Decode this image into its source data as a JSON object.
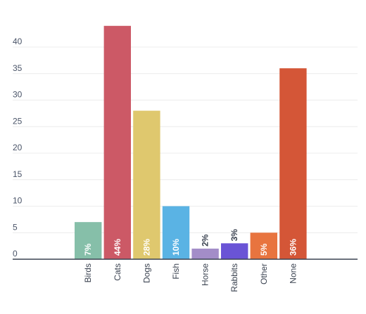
{
  "chart_data": {
    "type": "bar",
    "title": "",
    "xlabel": "",
    "ylabel": "",
    "ylim": [
      0,
      45
    ],
    "yticks": [
      0,
      5,
      10,
      15,
      20,
      25,
      30,
      35,
      40
    ],
    "grid": true,
    "legend": "none",
    "categories": [
      "Birds",
      "Cats",
      "Dogs",
      "Fish",
      "Horse",
      "Rabbits",
      "Other",
      "None"
    ],
    "values": [
      7,
      44,
      28,
      10,
      2,
      3,
      5,
      36
    ],
    "labels": [
      "7%",
      "44%",
      "28%",
      "10%",
      "2%",
      "3%",
      "5%",
      "36%"
    ],
    "colors": [
      "#86bfa9",
      "#cc5966",
      "#dfc86e",
      "#5ab3e4",
      "#a38dc8",
      "#6a54d6",
      "#e8743f",
      "#d45637"
    ]
  }
}
